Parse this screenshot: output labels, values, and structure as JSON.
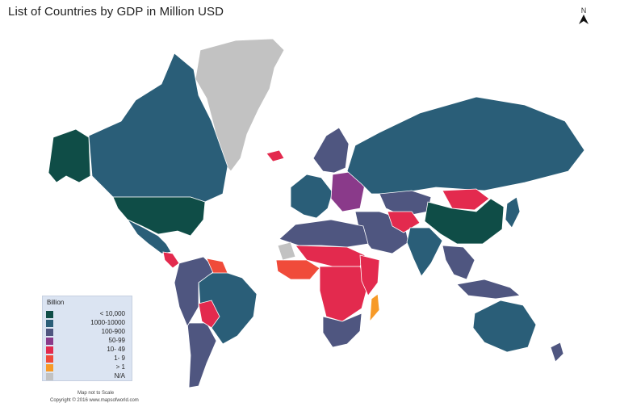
{
  "title": "List of Countries by GDP in Million USD",
  "north_label": "N",
  "legend": {
    "title": "Billion",
    "items": [
      {
        "label": "< 10,000",
        "color": "#0f4d47"
      },
      {
        "label": "1000-10000",
        "color": "#2a5e78"
      },
      {
        "label": "100-900",
        "color": "#4f5680"
      },
      {
        "label": "50-99",
        "color": "#8a3a8a"
      },
      {
        "label": "10- 49",
        "color": "#e32a4e"
      },
      {
        "label": "1- 9",
        "color": "#f04b3a"
      },
      {
        "label": "> 1",
        "color": "#f79a27"
      },
      {
        "label": "N/A",
        "color": "#c2c2c2"
      }
    ]
  },
  "regions": [
    {
      "name": "Greenland",
      "class": "N/A"
    },
    {
      "name": "Alaska",
      "class": "< 10,000"
    },
    {
      "name": "Canada",
      "class": "1000-10000"
    },
    {
      "name": "United States",
      "class": "< 10,000"
    },
    {
      "name": "Mexico",
      "class": "1000-10000"
    },
    {
      "name": "Central America",
      "class": "10- 49"
    },
    {
      "name": "Brazil",
      "class": "1000-10000"
    },
    {
      "name": "Argentina",
      "class": "100-900"
    },
    {
      "name": "Western South America",
      "class": "100-900"
    },
    {
      "name": "Bolivia / Paraguay",
      "class": "10- 49"
    },
    {
      "name": "Guianas",
      "class": "1- 9"
    },
    {
      "name": "Western Europe",
      "class": "1000-10000"
    },
    {
      "name": "Scandinavia",
      "class": "100-900"
    },
    {
      "name": "Eastern Europe",
      "class": "50-99"
    },
    {
      "name": "Iceland",
      "class": "10- 49"
    },
    {
      "name": "Russia",
      "class": "1000-10000"
    },
    {
      "name": "Kazakhstan",
      "class": "100-900"
    },
    {
      "name": "Mongolia",
      "class": "10- 49"
    },
    {
      "name": "China",
      "class": "< 10,000"
    },
    {
      "name": "Japan",
      "class": "1000-10000"
    },
    {
      "name": "Middle East",
      "class": "100-900"
    },
    {
      "name": "Central Asia",
      "class": "10- 49"
    },
    {
      "name": "India",
      "class": "1000-10000"
    },
    {
      "name": "Southeast Asia",
      "class": "100-900"
    },
    {
      "name": "Indonesia",
      "class": "100-900"
    },
    {
      "name": "Australia",
      "class": "1000-10000"
    },
    {
      "name": "New Zealand",
      "class": "100-900"
    },
    {
      "name": "North Africa",
      "class": "100-900"
    },
    {
      "name": "Western Sahara",
      "class": "N/A"
    },
    {
      "name": "Sahel",
      "class": "10- 49"
    },
    {
      "name": "West Africa",
      "class": "1- 9"
    },
    {
      "name": "Central Africa",
      "class": "10- 49"
    },
    {
      "name": "East Africa",
      "class": "10- 49"
    },
    {
      "name": "Southern Africa",
      "class": "100-900"
    },
    {
      "name": "Madagascar",
      "class": "> 1"
    }
  ],
  "scale_note": "Map not to Scale",
  "copyright": "Copyright © 2016 www.mapsofworld.com"
}
